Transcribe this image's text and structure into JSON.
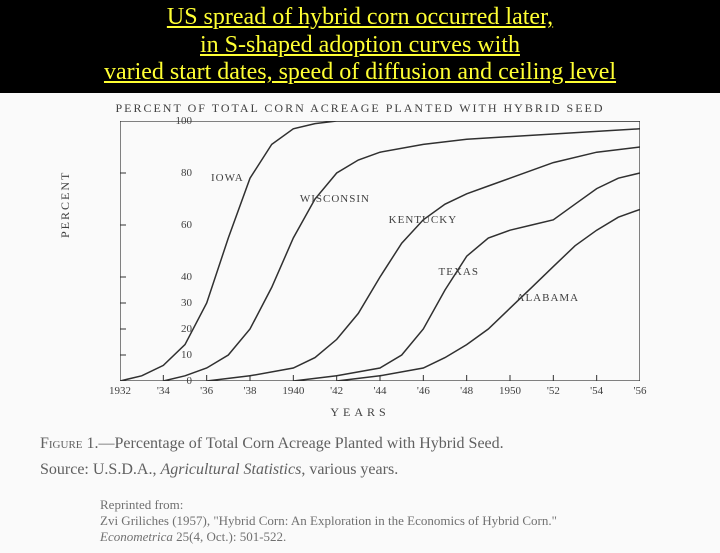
{
  "header": {
    "line1": "US spread of hybrid corn occurred later,",
    "line2": "in S-shaped adoption curves with",
    "line3": "varied start dates, speed of diffusion and ceiling level"
  },
  "chart": {
    "type": "line",
    "title": "PERCENT OF TOTAL CORN ACREAGE PLANTED WITH HYBRID SEED",
    "ylabel": "PERCENT",
    "xlabel": "YEARS",
    "background_color": "#fafafa",
    "axis_color": "#303030",
    "line_color": "#303030",
    "line_width": 1.5,
    "xlim": [
      1932,
      1956
    ],
    "ylim": [
      0,
      100
    ],
    "yticks": [
      0,
      10,
      20,
      30,
      40,
      60,
      80,
      100
    ],
    "xticks": [
      {
        "v": 1932,
        "label": "1932"
      },
      {
        "v": 1934,
        "label": "'34"
      },
      {
        "v": 1936,
        "label": "'36"
      },
      {
        "v": 1938,
        "label": "'38"
      },
      {
        "v": 1940,
        "label": "1940"
      },
      {
        "v": 1942,
        "label": "'42"
      },
      {
        "v": 1944,
        "label": "'44"
      },
      {
        "v": 1946,
        "label": "'46"
      },
      {
        "v": 1948,
        "label": "'48"
      },
      {
        "v": 1950,
        "label": "1950"
      },
      {
        "v": 1952,
        "label": "'52"
      },
      {
        "v": 1954,
        "label": "'54"
      },
      {
        "v": 1956,
        "label": "'56"
      }
    ],
    "series": [
      {
        "name": "IOWA",
        "label_x": 1936.2,
        "label_y": 78,
        "points": [
          [
            1932,
            0
          ],
          [
            1933,
            2
          ],
          [
            1934,
            6
          ],
          [
            1935,
            14
          ],
          [
            1936,
            30
          ],
          [
            1937,
            55
          ],
          [
            1938,
            78
          ],
          [
            1939,
            91
          ],
          [
            1940,
            97
          ],
          [
            1941,
            99
          ],
          [
            1942,
            100
          ],
          [
            1944,
            100
          ],
          [
            1948,
            100
          ],
          [
            1956,
            100
          ]
        ]
      },
      {
        "name": "WISCONSIN",
        "label_x": 1940.3,
        "label_y": 70,
        "points": [
          [
            1934,
            0
          ],
          [
            1935,
            2
          ],
          [
            1936,
            5
          ],
          [
            1937,
            10
          ],
          [
            1938,
            20
          ],
          [
            1939,
            36
          ],
          [
            1940,
            55
          ],
          [
            1941,
            70
          ],
          [
            1942,
            80
          ],
          [
            1943,
            85
          ],
          [
            1944,
            88
          ],
          [
            1946,
            91
          ],
          [
            1948,
            93
          ],
          [
            1950,
            94
          ],
          [
            1952,
            95
          ],
          [
            1954,
            96
          ],
          [
            1956,
            97
          ]
        ]
      },
      {
        "name": "KENTUCKY",
        "label_x": 1944.4,
        "label_y": 62,
        "points": [
          [
            1936,
            0
          ],
          [
            1938,
            2
          ],
          [
            1940,
            5
          ],
          [
            1941,
            9
          ],
          [
            1942,
            16
          ],
          [
            1943,
            26
          ],
          [
            1944,
            40
          ],
          [
            1945,
            53
          ],
          [
            1946,
            62
          ],
          [
            1947,
            68
          ],
          [
            1948,
            72
          ],
          [
            1949,
            75
          ],
          [
            1950,
            78
          ],
          [
            1952,
            84
          ],
          [
            1954,
            88
          ],
          [
            1956,
            90
          ]
        ]
      },
      {
        "name": "TEXAS",
        "label_x": 1946.7,
        "label_y": 42,
        "points": [
          [
            1940,
            0
          ],
          [
            1942,
            2
          ],
          [
            1944,
            5
          ],
          [
            1945,
            10
          ],
          [
            1946,
            20
          ],
          [
            1947,
            35
          ],
          [
            1948,
            48
          ],
          [
            1949,
            55
          ],
          [
            1950,
            58
          ],
          [
            1951,
            60
          ],
          [
            1952,
            62
          ],
          [
            1953,
            68
          ],
          [
            1954,
            74
          ],
          [
            1955,
            78
          ],
          [
            1956,
            80
          ]
        ]
      },
      {
        "name": "ALABAMA",
        "label_x": 1950.3,
        "label_y": 32,
        "points": [
          [
            1942,
            0
          ],
          [
            1944,
            2
          ],
          [
            1946,
            5
          ],
          [
            1947,
            9
          ],
          [
            1948,
            14
          ],
          [
            1949,
            20
          ],
          [
            1950,
            28
          ],
          [
            1951,
            36
          ],
          [
            1952,
            44
          ],
          [
            1953,
            52
          ],
          [
            1954,
            58
          ],
          [
            1955,
            63
          ],
          [
            1956,
            66
          ]
        ]
      }
    ]
  },
  "caption": {
    "figure_label": "Figure 1.",
    "figure_text": "—Percentage of Total Corn Acreage Planted with Hybrid Seed.",
    "source_label": "Source:",
    "source_body": " U.S.D.A., ",
    "source_ital": "Agricultural Statistics",
    "source_tail": ", various years."
  },
  "reprint": {
    "l1": "Reprinted from:",
    "l2a": "Zvi Griliches (1957), \"Hybrid Corn: An Exploration in the Economics of Hybrid Corn.\"",
    "l3_ital": "Econometrica",
    "l3_tail": " 25(4, Oct.): 501-522."
  }
}
